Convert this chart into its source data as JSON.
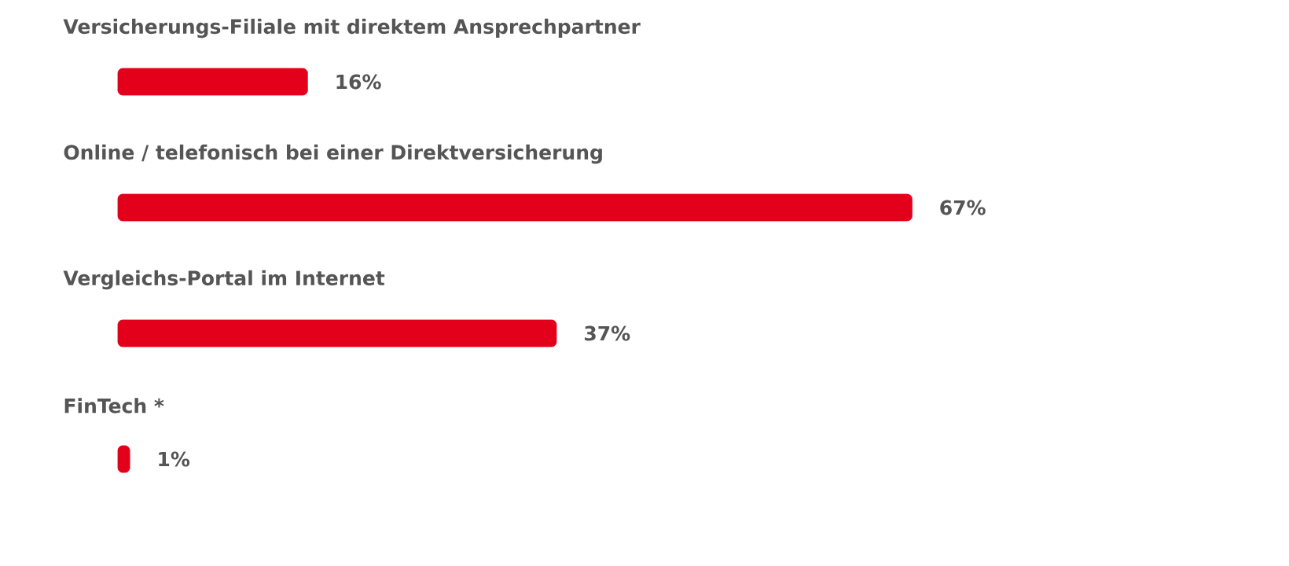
{
  "chart_data": {
    "type": "bar",
    "orientation": "horizontal",
    "categories": [
      "Versicherungs-Filiale mit direktem Ansprechpartner",
      "Online / telefonisch bei einer Direktversicherung",
      "Vergleichs-Portal im Internet",
      "FinTech *"
    ],
    "values": [
      16,
      67,
      37,
      1
    ],
    "value_labels": [
      "16%",
      "67%",
      "37%",
      "1%"
    ],
    "color": "#e2001a"
  }
}
